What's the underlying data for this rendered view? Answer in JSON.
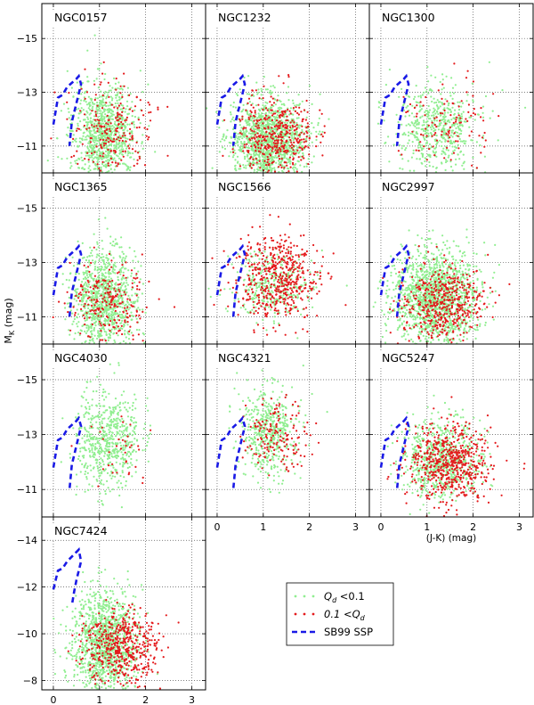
{
  "chart_data": {
    "type": "scatter",
    "ylabel": "M_K (mag)",
    "xlabel": "(J-K) (mag)",
    "xlim": [
      -0.25,
      3.3
    ],
    "ylim_shared": [
      -10.0,
      -16.3
    ],
    "ylim_last": [
      -7.6,
      -15.0
    ],
    "x_ticks": [
      0,
      1,
      2,
      3
    ],
    "x_tick_labels": [
      "0",
      "1",
      "2",
      "3"
    ],
    "y_ticks_shared": [
      -15,
      -13,
      -11
    ],
    "y_tick_labels_shared": [
      "−15",
      "−13",
      "−11"
    ],
    "y_ticks_last": [
      -14,
      -12,
      -10,
      -8
    ],
    "y_tick_labels_last": [
      "−14",
      "−12",
      "−10",
      "−8"
    ],
    "grid": true,
    "legend": {
      "position": "bottom-right",
      "entries": [
        {
          "key": "green",
          "label": "Qd < 0.1",
          "label_main": "Q",
          "label_sub": "d",
          "label_tail": " <0.1"
        },
        {
          "key": "red",
          "label": "0.1 < Qd",
          "label_main": "0.1 <Q",
          "label_sub": "d",
          "label_tail": ""
        },
        {
          "key": "ssp",
          "label": "SB99 SSP"
        }
      ]
    },
    "colors": {
      "green": "#90ee90",
      "red": "#e41a1c",
      "ssp": "#1a1ae6",
      "grid": "#555555"
    },
    "ssp_track": [
      [
        0.0,
        -11.8
      ],
      [
        0.1,
        -12.8
      ],
      [
        0.2,
        -12.9
      ],
      [
        0.3,
        -13.2
      ],
      [
        0.4,
        -13.35
      ],
      [
        0.5,
        -13.5
      ],
      [
        0.55,
        -13.6
      ],
      [
        0.6,
        -13.3
      ],
      [
        0.5,
        -12.6
      ],
      [
        0.4,
        -11.9
      ],
      [
        0.35,
        -11.0
      ]
    ],
    "ssp_track_last": [
      [
        0.0,
        -11.9
      ],
      [
        0.1,
        -12.7
      ],
      [
        0.2,
        -12.8
      ],
      [
        0.3,
        -13.1
      ],
      [
        0.4,
        -13.3
      ],
      [
        0.5,
        -13.5
      ],
      [
        0.55,
        -13.6
      ],
      [
        0.6,
        -13.1
      ],
      [
        0.5,
        -12.3
      ],
      [
        0.45,
        -11.8
      ],
      [
        0.4,
        -11.2
      ]
    ],
    "panels": [
      {
        "name": "NGC0157",
        "green": {
          "n": 900,
          "x_mean": 1.1,
          "x_sd": 0.35,
          "y_mean": -11.5,
          "y_sd": 0.9
        },
        "red": {
          "n": 220,
          "x_mean": 1.3,
          "x_sd": 0.45,
          "y_mean": -11.6,
          "y_sd": 0.8
        }
      },
      {
        "name": "NGC1232",
        "green": {
          "n": 1300,
          "x_mean": 1.1,
          "x_sd": 0.4,
          "y_mean": -11.2,
          "y_sd": 0.8
        },
        "red": {
          "n": 420,
          "x_mean": 1.3,
          "x_sd": 0.4,
          "y_mean": -11.3,
          "y_sd": 0.75
        }
      },
      {
        "name": "NGC1300",
        "green": {
          "n": 550,
          "x_mean": 1.2,
          "x_sd": 0.45,
          "y_mean": -11.7,
          "y_sd": 0.8
        },
        "red": {
          "n": 110,
          "x_mean": 1.4,
          "x_sd": 0.45,
          "y_mean": -11.9,
          "y_sd": 0.9
        }
      },
      {
        "name": "NGC1365",
        "green": {
          "n": 1000,
          "x_mean": 1.1,
          "x_sd": 0.35,
          "y_mean": -11.6,
          "y_sd": 0.9
        },
        "red": {
          "n": 230,
          "x_mean": 1.2,
          "x_sd": 0.4,
          "y_mean": -11.6,
          "y_sd": 0.7
        }
      },
      {
        "name": "NGC1566",
        "green": {
          "n": 350,
          "x_mean": 1.2,
          "x_sd": 0.45,
          "y_mean": -12.2,
          "y_sd": 0.6
        },
        "red": {
          "n": 520,
          "x_mean": 1.3,
          "x_sd": 0.45,
          "y_mean": -12.4,
          "y_sd": 0.8
        }
      },
      {
        "name": "NGC2997",
        "green": {
          "n": 1500,
          "x_mean": 1.2,
          "x_sd": 0.45,
          "y_mean": -11.7,
          "y_sd": 0.9
        },
        "red": {
          "n": 480,
          "x_mean": 1.3,
          "x_sd": 0.45,
          "y_mean": -11.5,
          "y_sd": 0.7
        }
      },
      {
        "name": "NGC4030",
        "green": {
          "n": 600,
          "x_mean": 1.2,
          "x_sd": 0.35,
          "y_mean": -12.8,
          "y_sd": 0.9
        },
        "red": {
          "n": 35,
          "x_mean": 1.4,
          "x_sd": 0.4,
          "y_mean": -12.4,
          "y_sd": 0.6
        }
      },
      {
        "name": "NGC4321",
        "green": {
          "n": 500,
          "x_mean": 1.1,
          "x_sd": 0.3,
          "y_mean": -13.1,
          "y_sd": 0.8
        },
        "red": {
          "n": 160,
          "x_mean": 1.3,
          "x_sd": 0.35,
          "y_mean": -13.0,
          "y_sd": 0.6
        }
      },
      {
        "name": "NGC5247",
        "green": {
          "n": 700,
          "x_mean": 1.3,
          "x_sd": 0.45,
          "y_mean": -12.1,
          "y_sd": 0.7
        },
        "red": {
          "n": 600,
          "x_mean": 1.5,
          "x_sd": 0.45,
          "y_mean": -12.0,
          "y_sd": 0.7
        }
      },
      {
        "name": "NGC7424",
        "green": {
          "n": 1200,
          "x_mean": 1.1,
          "x_sd": 0.35,
          "y_mean": -9.6,
          "y_sd": 1.1
        },
        "red": {
          "n": 500,
          "x_mean": 1.5,
          "x_sd": 0.4,
          "y_mean": -9.4,
          "y_sd": 0.8
        }
      }
    ]
  }
}
